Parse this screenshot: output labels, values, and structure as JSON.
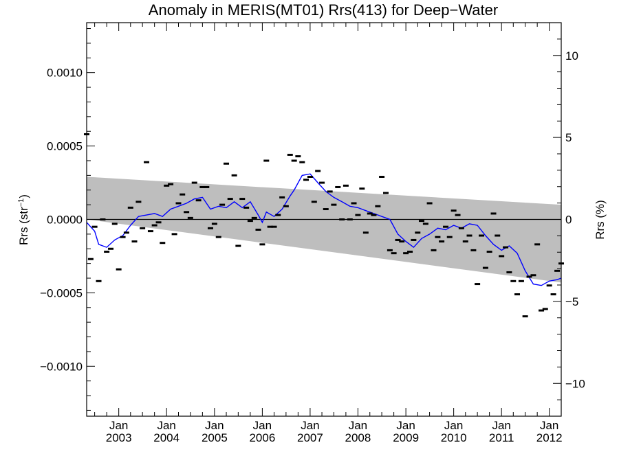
{
  "chart_data": {
    "type": "scatter",
    "title": "Anomaly in MERIS(MT01) Rrs(413) for Deep−Water",
    "ylabel_left": "Rrs (str",
    "ylabel_left_sup": "−1",
    "ylabel_left_close": ")",
    "ylabel_right": "Rrs (%)",
    "xlabel": "",
    "xlim": [
      "2002-05-01",
      "2012-04-01"
    ],
    "ylim": [
      -0.00134,
      0.00134
    ],
    "ylim_right": [
      -12.0,
      12.0
    ],
    "yticks_left": [
      {
        "value": 0.001,
        "label": "0.0010"
      },
      {
        "value": 0.0005,
        "label": "0.0005"
      },
      {
        "value": 0.0,
        "label": "0.0000"
      },
      {
        "value": -0.0005,
        "label": "−0.0005"
      },
      {
        "value": -0.001,
        "label": "−0.0010"
      }
    ],
    "yticks_right": [
      {
        "value": 10,
        "label": "10"
      },
      {
        "value": 5,
        "label": "5"
      },
      {
        "value": 0,
        "label": "0"
      },
      {
        "value": -5,
        "label": "−5"
      },
      {
        "value": -10,
        "label": "−10"
      }
    ],
    "xticks": [
      {
        "date": "2003-01-01",
        "month": "Jan",
        "year": "2003"
      },
      {
        "date": "2004-01-01",
        "month": "Jan",
        "year": "2004"
      },
      {
        "date": "2005-01-01",
        "month": "Jan",
        "year": "2005"
      },
      {
        "date": "2006-01-01",
        "month": "Jan",
        "year": "2006"
      },
      {
        "date": "2007-01-01",
        "month": "Jan",
        "year": "2007"
      },
      {
        "date": "2008-01-01",
        "month": "Jan",
        "year": "2008"
      },
      {
        "date": "2009-01-01",
        "month": "Jan",
        "year": "2009"
      },
      {
        "date": "2010-01-01",
        "month": "Jan",
        "year": "2010"
      },
      {
        "date": "2011-01-01",
        "month": "Jan",
        "year": "2011"
      },
      {
        "date": "2012-01-01",
        "month": "Jan",
        "year": "2012"
      }
    ],
    "band": {
      "x": [
        "2002-05-01",
        "2012-04-01"
      ],
      "upper": [
        0.00029,
        0.0001
      ],
      "lower": [
        0.0,
        -0.00043
      ],
      "color": "#bebebe"
    },
    "points": {
      "color": "#000000",
      "x": [
        "2002-05-01",
        "2002-06-01",
        "2002-07-01",
        "2002-08-01",
        "2002-09-01",
        "2002-10-01",
        "2002-11-01",
        "2002-12-01",
        "2003-01-01",
        "2003-02-01",
        "2003-03-01",
        "2003-04-01",
        "2003-05-01",
        "2003-06-01",
        "2003-07-01",
        "2003-08-01",
        "2003-09-01",
        "2003-10-01",
        "2003-11-01",
        "2003-12-01",
        "2004-01-01",
        "2004-02-01",
        "2004-03-01",
        "2004-04-01",
        "2004-05-01",
        "2004-06-01",
        "2004-07-01",
        "2004-08-01",
        "2004-09-01",
        "2004-10-01",
        "2004-11-01",
        "2004-12-01",
        "2005-01-01",
        "2005-02-01",
        "2005-03-01",
        "2005-04-01",
        "2005-05-01",
        "2005-06-01",
        "2005-07-01",
        "2005-08-01",
        "2005-09-01",
        "2005-10-01",
        "2005-11-01",
        "2005-12-01",
        "2006-01-01",
        "2006-02-01",
        "2006-03-01",
        "2006-04-01",
        "2006-05-01",
        "2006-06-01",
        "2006-07-01",
        "2006-08-01",
        "2006-09-01",
        "2006-10-01",
        "2006-11-01",
        "2006-12-01",
        "2007-01-01",
        "2007-02-01",
        "2007-03-01",
        "2007-04-01",
        "2007-05-01",
        "2007-06-01",
        "2007-07-01",
        "2007-08-01",
        "2007-09-01",
        "2007-10-01",
        "2007-11-01",
        "2007-12-01",
        "2008-01-01",
        "2008-02-01",
        "2008-03-01",
        "2008-04-01",
        "2008-05-01",
        "2008-06-01",
        "2008-07-01",
        "2008-08-01",
        "2008-09-01",
        "2008-10-01",
        "2008-11-01",
        "2008-12-01",
        "2009-01-01",
        "2009-02-01",
        "2009-03-01",
        "2009-04-01",
        "2009-05-01",
        "2009-06-01",
        "2009-07-01",
        "2009-08-01",
        "2009-09-01",
        "2009-10-01",
        "2009-11-01",
        "2009-12-01",
        "2010-01-01",
        "2010-02-01",
        "2010-03-01",
        "2010-04-01",
        "2010-05-01",
        "2010-06-01",
        "2010-07-01",
        "2010-08-01",
        "2010-09-01",
        "2010-10-01",
        "2010-11-01",
        "2010-12-01",
        "2011-01-01",
        "2011-02-01",
        "2011-03-01",
        "2011-04-01",
        "2011-05-01",
        "2011-06-01",
        "2011-07-01",
        "2011-08-01",
        "2011-09-01",
        "2011-10-01",
        "2011-11-01",
        "2011-12-01",
        "2012-01-01",
        "2012-02-01",
        "2012-03-01",
        "2012-04-01"
      ],
      "y": [
        0.00058,
        -0.00027,
        -5e-05,
        -0.00042,
        0.0,
        -0.00022,
        -0.0002,
        -3e-05,
        -0.00034,
        -0.00012,
        -9e-05,
        8e-05,
        -0.00015,
        0.00012,
        -6e-05,
        0.00039,
        -8e-05,
        -4e-05,
        -2e-05,
        -0.00016,
        0.00023,
        0.00024,
        -0.0001,
        0.00011,
        0.00017,
        5e-05,
        1e-05,
        0.00025,
        0.00013,
        0.00022,
        0.00022,
        -6e-05,
        -3e-05,
        -0.00012,
        0.0001,
        0.00038,
        0.00014,
        0.0003,
        -0.00018,
        0.00014,
        8e-05,
        -1e-05,
        1e-05,
        -7e-05,
        -0.00017,
        0.0004,
        -5e-05,
        -5e-05,
        3e-05,
        0.00015,
        9e-05,
        0.00044,
        0.0004,
        0.00043,
        0.00039,
        0.00027,
        0.00029,
        0.00012,
        0.00033,
        0.00025,
        7e-05,
        0.00019,
        0.0001,
        0.00022,
        0.0,
        0.00023,
        0.0,
        0.00011,
        3e-05,
        0.00021,
        -9e-05,
        4e-05,
        3e-05,
        9e-05,
        0.00029,
        0.00018,
        -0.00021,
        -0.00023,
        -0.00014,
        -0.00015,
        -0.00023,
        -0.00022,
        -0.00014,
        -9e-05,
        -1e-05,
        -3e-05,
        0.00011,
        -0.00021,
        -0.00012,
        -0.00015,
        -5e-05,
        -0.00012,
        6e-05,
        3e-05,
        -6e-05,
        -0.00015,
        -0.00011,
        -0.00021,
        -0.00044,
        -0.00011,
        -0.00033,
        -0.00022,
        4e-05,
        -0.00011,
        -0.00025,
        -0.00019,
        -0.00036,
        -0.00042,
        -0.00051,
        -0.00042,
        -0.00066,
        -0.00039,
        -0.00038,
        -0.00017,
        -0.00062,
        -0.00061,
        -0.00045,
        -0.00051,
        -0.00035,
        -0.0003
      ]
    },
    "series": [
      {
        "color": "#0000ff",
        "x": [
          "2002-05-01",
          "2002-07-01",
          "2002-08-01",
          "2002-10-01",
          "2002-12-01",
          "2003-02-01",
          "2003-04-01",
          "2003-06-01",
          "2003-08-01",
          "2003-10-01",
          "2003-12-01",
          "2004-02-01",
          "2004-04-01",
          "2004-06-01",
          "2004-08-01",
          "2004-10-01",
          "2004-12-01",
          "2005-02-01",
          "2005-04-01",
          "2005-06-01",
          "2005-08-01",
          "2005-10-01",
          "2005-12-01",
          "2006-01-01",
          "2006-02-01",
          "2006-04-01",
          "2006-06-01",
          "2006-08-01",
          "2006-09-01",
          "2006-11-01",
          "2007-01-01",
          "2007-03-01",
          "2007-05-01",
          "2007-07-01",
          "2007-09-01",
          "2007-11-01",
          "2008-01-01",
          "2008-03-01",
          "2008-05-01",
          "2008-07-01",
          "2008-09-01",
          "2008-11-01",
          "2009-01-01",
          "2009-03-01",
          "2009-05-01",
          "2009-07-01",
          "2009-09-01",
          "2009-11-01",
          "2010-01-01",
          "2010-03-01",
          "2010-05-01",
          "2010-07-01",
          "2010-09-01",
          "2010-11-01",
          "2011-01-01",
          "2011-03-01",
          "2011-05-01",
          "2011-07-01",
          "2011-09-01",
          "2011-11-01",
          "2012-01-01",
          "2012-03-01",
          "2012-04-01"
        ],
        "y": [
          -2e-05,
          -8e-05,
          -0.00017,
          -0.00019,
          -0.00014,
          -0.00011,
          -4e-05,
          2e-05,
          3e-05,
          4e-05,
          2e-05,
          7e-05,
          9e-05,
          0.00011,
          0.00014,
          0.00015,
          7e-05,
          9e-05,
          8e-05,
          0.00012,
          8e-05,
          0.00012,
          3e-05,
          -2e-05,
          5e-05,
          2e-05,
          7e-05,
          0.00016,
          0.0002,
          0.0003,
          0.00031,
          0.00025,
          0.00019,
          0.00015,
          0.00012,
          9e-05,
          8e-05,
          6e-05,
          4e-05,
          2e-05,
          0.0,
          -0.0001,
          -0.00015,
          -0.00019,
          -0.00013,
          -0.0001,
          -6e-05,
          -7e-05,
          -4e-05,
          -6e-05,
          -3e-05,
          -4e-05,
          -0.00011,
          -0.00017,
          -0.00021,
          -0.00018,
          -0.00023,
          -0.00035,
          -0.00044,
          -0.00045,
          -0.00042,
          -0.00041,
          -0.0004
        ]
      }
    ],
    "zero_line": 0.0,
    "grid": false,
    "legend": "none"
  }
}
